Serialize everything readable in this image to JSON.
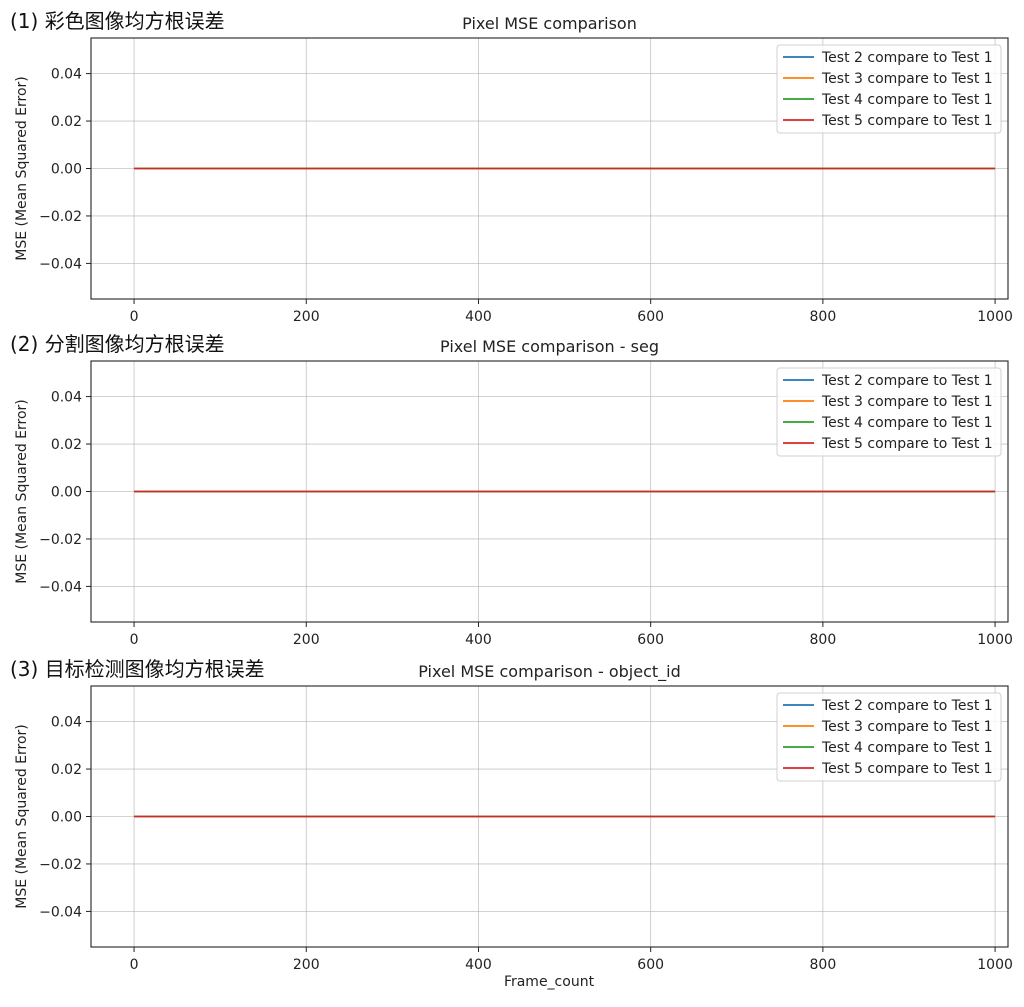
{
  "figure": {
    "xlabel": "Frame_count"
  },
  "chart_data": [
    {
      "type": "line",
      "section_label": "(1) 彩色图像均方根误差",
      "title": "Pixel MSE comparison",
      "xlabel": "",
      "ylabel": "MSE (Mean Squared Error)",
      "xlim": [
        -50,
        1015
      ],
      "ylim": [
        -0.055,
        0.055
      ],
      "xticks": [
        0,
        200,
        400,
        600,
        800,
        1000
      ],
      "yticks": [
        0.04,
        0.02,
        0.0,
        -0.02,
        -0.04
      ],
      "xtick_labels": [
        "0",
        "200",
        "400",
        "600",
        "800",
        "1000"
      ],
      "ytick_labels": [
        "0.04",
        "0.02",
        "0.00",
        "−0.02",
        "−0.04"
      ],
      "grid": true,
      "legend_position": "top-right",
      "series": [
        {
          "name": "Test 2 compare to Test 1",
          "color": "#1f77b4",
          "x": [
            0,
            1000
          ],
          "y": [
            0,
            0
          ]
        },
        {
          "name": "Test 3 compare to Test 1",
          "color": "#ff7f0e",
          "x": [
            0,
            1000
          ],
          "y": [
            0,
            0
          ]
        },
        {
          "name": "Test 4 compare to Test 1",
          "color": "#2ca02c",
          "x": [
            0,
            1000
          ],
          "y": [
            0,
            0
          ]
        },
        {
          "name": "Test 5 compare to Test 1",
          "color": "#d62728",
          "x": [
            0,
            1000
          ],
          "y": [
            0,
            0
          ]
        }
      ]
    },
    {
      "type": "line",
      "section_label": "(2) 分割图像均方根误差",
      "title": "Pixel MSE comparison - seg",
      "xlabel": "",
      "ylabel": "MSE (Mean Squared Error)",
      "xlim": [
        -50,
        1015
      ],
      "ylim": [
        -0.055,
        0.055
      ],
      "xticks": [
        0,
        200,
        400,
        600,
        800,
        1000
      ],
      "yticks": [
        0.04,
        0.02,
        0.0,
        -0.02,
        -0.04
      ],
      "xtick_labels": [
        "0",
        "200",
        "400",
        "600",
        "800",
        "1000"
      ],
      "ytick_labels": [
        "0.04",
        "0.02",
        "0.00",
        "−0.02",
        "−0.04"
      ],
      "grid": true,
      "legend_position": "top-right",
      "series": [
        {
          "name": "Test 2 compare to Test 1",
          "color": "#1f77b4",
          "x": [
            0,
            1000
          ],
          "y": [
            0,
            0
          ]
        },
        {
          "name": "Test 3 compare to Test 1",
          "color": "#ff7f0e",
          "x": [
            0,
            1000
          ],
          "y": [
            0,
            0
          ]
        },
        {
          "name": "Test 4 compare to Test 1",
          "color": "#2ca02c",
          "x": [
            0,
            1000
          ],
          "y": [
            0,
            0
          ]
        },
        {
          "name": "Test 5 compare to Test 1",
          "color": "#d62728",
          "x": [
            0,
            1000
          ],
          "y": [
            0,
            0
          ]
        }
      ]
    },
    {
      "type": "line",
      "section_label": "(3) 目标检测图像均方根误差",
      "title": "Pixel MSE comparison - object_id",
      "xlabel": "Frame_count",
      "ylabel": "MSE (Mean Squared Error)",
      "xlim": [
        -50,
        1015
      ],
      "ylim": [
        -0.055,
        0.055
      ],
      "xticks": [
        0,
        200,
        400,
        600,
        800,
        1000
      ],
      "yticks": [
        0.04,
        0.02,
        0.0,
        -0.02,
        -0.04
      ],
      "xtick_labels": [
        "0",
        "200",
        "400",
        "600",
        "800",
        "1000"
      ],
      "ytick_labels": [
        "0.04",
        "0.02",
        "0.00",
        "−0.02",
        "−0.04"
      ],
      "grid": true,
      "legend_position": "top-right",
      "series": [
        {
          "name": "Test 2 compare to Test 1",
          "color": "#1f77b4",
          "x": [
            0,
            1000
          ],
          "y": [
            0,
            0
          ]
        },
        {
          "name": "Test 3 compare to Test 1",
          "color": "#ff7f0e",
          "x": [
            0,
            1000
          ],
          "y": [
            0,
            0
          ]
        },
        {
          "name": "Test 4 compare to Test 1",
          "color": "#2ca02c",
          "x": [
            0,
            1000
          ],
          "y": [
            0,
            0
          ]
        },
        {
          "name": "Test 5 compare to Test 1",
          "color": "#d62728",
          "x": [
            0,
            1000
          ],
          "y": [
            0,
            0
          ]
        }
      ]
    }
  ]
}
